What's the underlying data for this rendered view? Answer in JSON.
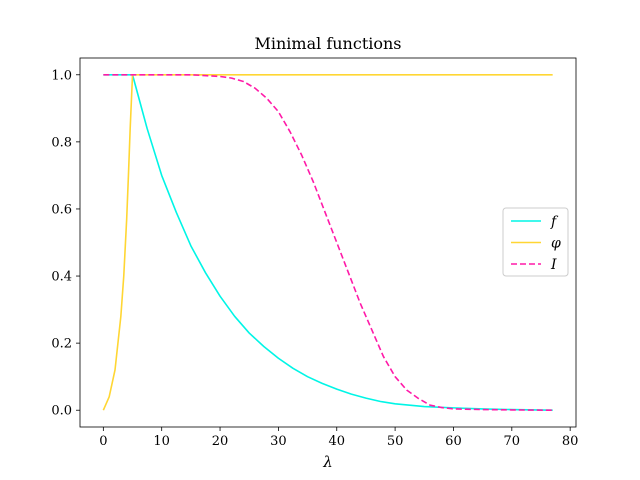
{
  "chart_data": {
    "type": "line",
    "title": "Minimal functions",
    "xlabel": "λ",
    "ylabel": "",
    "xlim": [
      -4,
      81
    ],
    "ylim": [
      -0.05,
      1.05
    ],
    "xticks": [
      "0",
      "10",
      "20",
      "30",
      "40",
      "50",
      "60",
      "70",
      "80"
    ],
    "yticks": [
      "0.0",
      "0.2",
      "0.4",
      "0.6",
      "0.8",
      "1.0"
    ],
    "legend_position": "center-right",
    "grid": false,
    "series": [
      {
        "name": "f",
        "color": "#00f5e6",
        "dash": "solid",
        "x": [
          0,
          5,
          7.5,
          10,
          12.5,
          15,
          17.5,
          20,
          22.5,
          25,
          27.5,
          30,
          32.5,
          35,
          37.5,
          40,
          42.5,
          45,
          47.5,
          50,
          55,
          60,
          65,
          70,
          77
        ],
        "y": [
          1.0,
          1.0,
          0.84,
          0.7,
          0.59,
          0.49,
          0.41,
          0.34,
          0.28,
          0.23,
          0.19,
          0.155,
          0.125,
          0.1,
          0.08,
          0.063,
          0.048,
          0.036,
          0.026,
          0.019,
          0.011,
          0.007,
          0.004,
          0.002,
          0.0
        ]
      },
      {
        "name": "φ",
        "color": "#ffd633",
        "dash": "solid",
        "x": [
          0,
          1,
          2,
          3,
          3.5,
          4,
          4.3,
          4.6,
          5,
          10,
          20,
          30,
          40,
          50,
          60,
          70,
          77
        ],
        "y": [
          0.0,
          0.04,
          0.12,
          0.28,
          0.4,
          0.57,
          0.7,
          0.84,
          1.0,
          1.0,
          1.0,
          1.0,
          1.0,
          1.0,
          1.0,
          1.0,
          1.0
        ]
      },
      {
        "name": "I",
        "color": "#ff1aa8",
        "dash": "dashed",
        "x": [
          0,
          5,
          10,
          15,
          20,
          22,
          24,
          26,
          28,
          30,
          32,
          34,
          36,
          38,
          40,
          42,
          44,
          46,
          48,
          50,
          52,
          54,
          56,
          58,
          60,
          65,
          70,
          77
        ],
        "y": [
          1.0,
          1.0,
          1.0,
          1.0,
          0.995,
          0.99,
          0.98,
          0.96,
          0.93,
          0.89,
          0.83,
          0.76,
          0.68,
          0.59,
          0.5,
          0.41,
          0.32,
          0.24,
          0.16,
          0.1,
          0.06,
          0.035,
          0.015,
          0.008,
          0.004,
          0.002,
          0.001,
          0.0
        ]
      }
    ]
  }
}
